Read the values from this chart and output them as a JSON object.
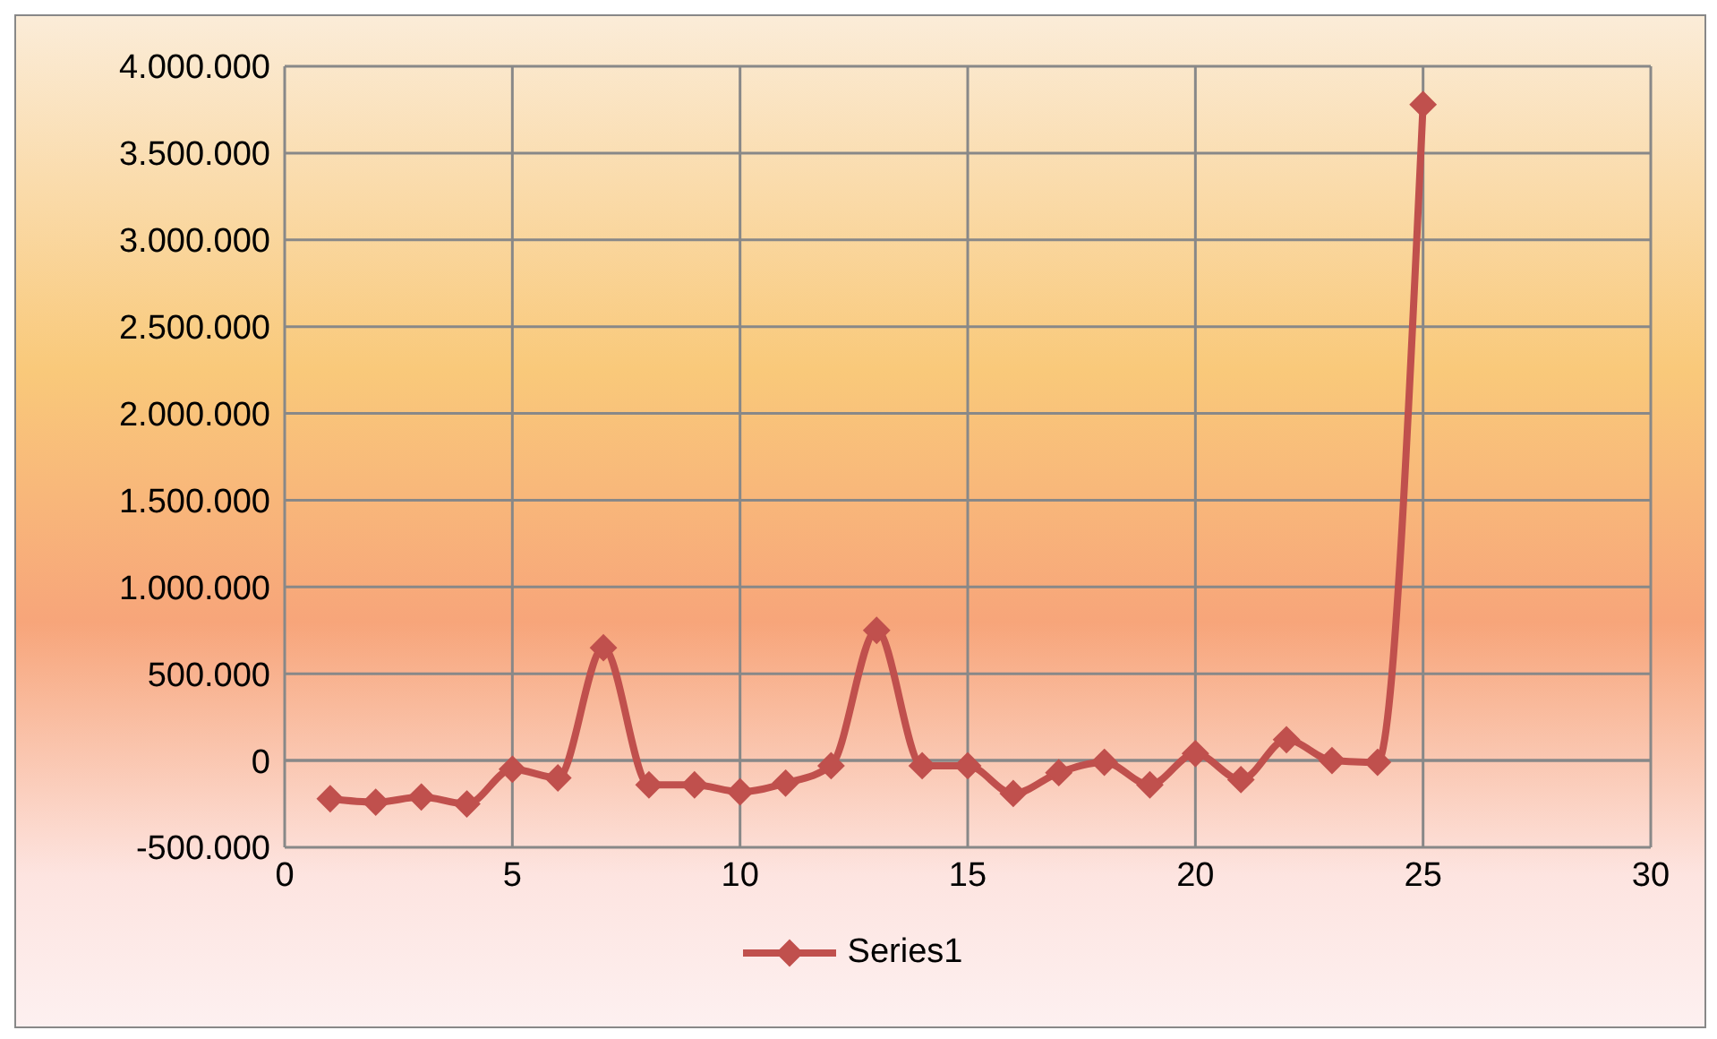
{
  "chart_data": {
    "type": "line",
    "x": [
      1,
      2,
      3,
      4,
      5,
      6,
      7,
      8,
      9,
      10,
      11,
      12,
      13,
      14,
      15,
      16,
      17,
      18,
      19,
      20,
      21,
      22,
      23,
      24,
      25
    ],
    "series": [
      {
        "name": "Series1",
        "color": "#c0504d",
        "values": [
          -220000,
          -240000,
          -210000,
          -250000,
          -50000,
          -100000,
          650000,
          -140000,
          -140000,
          -180000,
          -130000,
          -30000,
          750000,
          -30000,
          -30000,
          -190000,
          -70000,
          -10000,
          -140000,
          40000,
          -110000,
          120000,
          0,
          -10000,
          3780000
        ]
      }
    ],
    "xlim": [
      0,
      30
    ],
    "xticks": [
      0,
      5,
      10,
      15,
      20,
      25,
      30
    ],
    "ylim": [
      -500000,
      4000000
    ],
    "yticks": [
      {
        "value": -500000,
        "label": "-500.000"
      },
      {
        "value": 0,
        "label": "0"
      },
      {
        "value": 500000,
        "label": "500.000"
      },
      {
        "value": 1000000,
        "label": "1.000.000"
      },
      {
        "value": 1500000,
        "label": "1.500.000"
      },
      {
        "value": 2000000,
        "label": "2.000.000"
      },
      {
        "value": 2500000,
        "label": "2.500.000"
      },
      {
        "value": 3000000,
        "label": "3.000.000"
      },
      {
        "value": 3500000,
        "label": "3.500.000"
      },
      {
        "value": 4000000,
        "label": "4.000.000"
      }
    ],
    "grid": true,
    "legend": "bottom",
    "marker": "diamond",
    "line_style": "solid"
  }
}
